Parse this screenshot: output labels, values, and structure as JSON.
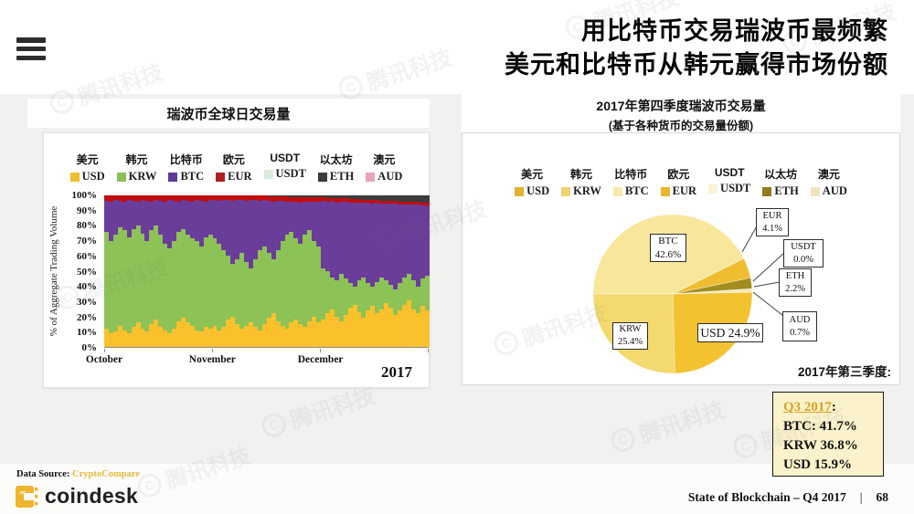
{
  "watermark": {
    "text": "腾讯科技"
  },
  "header": {
    "title_line1": "用比特币交易瑞波币最频繁",
    "title_line2": "美元和比特币从韩元赢得市场份额"
  },
  "left_chart": {
    "title": "瑞波币全球日交易量",
    "ylabel": "% of Aggregate Trading Volume",
    "year_label": "2017",
    "legend": [
      {
        "zh": "美元",
        "code": "USD",
        "color": "#EFBE2C"
      },
      {
        "zh": "韩元",
        "code": "KRW",
        "color": "#8CBE59"
      },
      {
        "zh": "比特币",
        "code": "BTC",
        "color": "#5D3A98"
      },
      {
        "zh": "欧元",
        "code": "EUR",
        "color": "#AF1E23"
      },
      {
        "zh": "USDT",
        "code": "USDT",
        "color": "#D9EBDD"
      },
      {
        "zh": "以太坊",
        "code": "ETH",
        "color": "#3B3B3B"
      },
      {
        "zh": "澳元",
        "code": "AUD",
        "color": "#E9A6B6"
      }
    ]
  },
  "right_chart": {
    "title_line1": "2017年第四季度瑞波币交易量",
    "title_line2": "(基于各种货币的交易量份额)",
    "q3_note": "2017年第三季度:",
    "legend": [
      {
        "zh": "美元",
        "code": "USD",
        "color": "#E2B233"
      },
      {
        "zh": "韩元",
        "code": "KRW",
        "color": "#EFD271"
      },
      {
        "zh": "比特币",
        "code": "BTC",
        "color": "#F7EAA9"
      },
      {
        "zh": "欧元",
        "code": "EUR",
        "color": "#E8B72F"
      },
      {
        "zh": "USDT",
        "code": "USDT",
        "color": "#FAF3D8"
      },
      {
        "zh": "以太坊",
        "code": "ETH",
        "color": "#917C1D"
      },
      {
        "zh": "澳元",
        "code": "AUD",
        "color": "#EDE3C1"
      }
    ]
  },
  "q3_box": {
    "link_label": "Q3 2017",
    "colon": ":",
    "lines": [
      "BTC: 41.7%",
      "KRW 36.8%",
      "USD 15.9%"
    ]
  },
  "footer": {
    "source_label": "Data Source:",
    "source_value": "CryptoCompare",
    "brand": "coindesk",
    "right_text": "State of Blockchain – Q4 2017",
    "separator": "|",
    "page": "68"
  },
  "chart_data": [
    {
      "type": "bar",
      "stacked": true,
      "percent_normalized": true,
      "title": "瑞波币全球日交易量",
      "ylabel": "% of Aggregate Trading Volume",
      "ylim": [
        0,
        100
      ],
      "yticks": [
        "100%",
        "90%",
        "80%",
        "70%",
        "60%",
        "50%",
        "40%",
        "30%",
        "20%",
        "10%",
        "0%"
      ],
      "x_months": [
        "October",
        "November",
        "December"
      ],
      "year": "2017",
      "days_per_month": 24,
      "series": [
        {
          "name": "USD",
          "color": "#FBC12D",
          "values": [
            12,
            9,
            10,
            14,
            11,
            9,
            13,
            16,
            12,
            10,
            15,
            18,
            13,
            11,
            9,
            12,
            17,
            19,
            16,
            14,
            11,
            10,
            13,
            12,
            14,
            11,
            13,
            18,
            20,
            15,
            12,
            14,
            16,
            13,
            11,
            15,
            19,
            22,
            17,
            14,
            12,
            16,
            18,
            15,
            13,
            17,
            20,
            16,
            18,
            22,
            25,
            20,
            17,
            21,
            26,
            28,
            23,
            19,
            24,
            27,
            22,
            25,
            29,
            26,
            21,
            24,
            28,
            31,
            25,
            22,
            27,
            24
          ]
        },
        {
          "name": "KRW",
          "color": "#8DC257",
          "values": [
            64,
            61,
            64,
            65,
            66,
            63,
            65,
            64,
            63,
            60,
            62,
            62,
            61,
            57,
            56,
            58,
            59,
            59,
            58,
            58,
            59,
            56,
            59,
            62,
            58,
            57,
            51,
            42,
            35,
            43,
            50,
            42,
            36,
            45,
            53,
            51,
            43,
            36,
            47,
            56,
            62,
            60,
            54,
            53,
            61,
            60,
            50,
            50,
            34,
            28,
            21,
            24,
            31,
            24,
            16,
            12,
            21,
            27,
            18,
            13,
            21,
            21,
            15,
            15,
            17,
            18,
            18,
            17,
            19,
            18,
            18,
            23
          ]
        },
        {
          "name": "BTC",
          "color": "#6A3D9A",
          "values": [
            20.5,
            26,
            23,
            17.5,
            19,
            25,
            18.5,
            16,
            22,
            26.5,
            19,
            17,
            22.5,
            28,
            32,
            26.5,
            20,
            19,
            22.5,
            24,
            27,
            30.5,
            24,
            23,
            25,
            28.5,
            33,
            37,
            41.5,
            39,
            35,
            40.5,
            45,
            39,
            32.5,
            31,
            34.5,
            38,
            32.5,
            26.5,
            22,
            20,
            24,
            27.5,
            22,
            19,
            26,
            30,
            44.5,
            46,
            50.5,
            51.5,
            48,
            50.5,
            53.5,
            55.5,
            51,
            49,
            53,
            54.5,
            52,
            48.5,
            50.5,
            53.5,
            56.5,
            52,
            48,
            46,
            50,
            54,
            48.5,
            46.5
          ]
        },
        {
          "name": "EUR",
          "color": "#C00E0E",
          "values": [
            3.5,
            4,
            3,
            3.5,
            4,
            3,
            3.5,
            4,
            3,
            3.5,
            4,
            3,
            3.5,
            4,
            3,
            3.5,
            4,
            3,
            3.5,
            4,
            3,
            3.5,
            4,
            3,
            3,
            3.5,
            3,
            3,
            3.5,
            3,
            3,
            3.5,
            3,
            3,
            3.5,
            3,
            3,
            3.5,
            3,
            3,
            3.5,
            3,
            3,
            3.5,
            3,
            3,
            3,
            3,
            2.5,
            2.5,
            2,
            2.5,
            2,
            2.5,
            2,
            2,
            2.5,
            2,
            2,
            2.5,
            2,
            2,
            2,
            2,
            2,
            2,
            2,
            2,
            2,
            2,
            2,
            2
          ]
        },
        {
          "name": "ETH",
          "color": "#3C3C3C",
          "values": [
            0,
            0,
            0,
            0,
            0,
            0,
            0,
            0,
            0,
            0,
            0,
            0,
            0,
            0,
            0,
            0,
            0,
            0,
            0,
            0,
            0,
            0,
            0,
            0,
            0,
            0,
            0,
            0,
            0,
            0,
            0,
            0,
            0,
            0,
            0,
            0,
            0.5,
            0.5,
            0.5,
            0.5,
            0.5,
            1,
            1,
            1,
            1,
            1,
            1,
            1,
            1,
            1.5,
            1.5,
            2,
            2,
            2,
            2.5,
            2.5,
            2.5,
            3,
            3,
            3,
            3,
            3.5,
            3.5,
            3.5,
            3.5,
            4,
            4,
            4,
            4,
            4,
            4.5,
            4.5
          ]
        }
      ],
      "series_not_visible": [
        {
          "name": "USDT",
          "approx_pct": 0
        },
        {
          "name": "AUD",
          "approx_pct": 0
        }
      ]
    },
    {
      "type": "pie",
      "title": "2017年第四季度瑞波币交易量",
      "subtitle": "(基于各种货币的交易量份额)",
      "start_angle_from_top_deg": 270,
      "clockwise": true,
      "slices": [
        {
          "label": "BTC",
          "pct": 42.6,
          "color": "#F8E79B"
        },
        {
          "label": "EUR",
          "pct": 4.1,
          "color": "#EFBD30"
        },
        {
          "label": "USDT",
          "pct": 0.0,
          "color": "#FCF5DC"
        },
        {
          "label": "ETH",
          "pct": 2.2,
          "color": "#A28D1E"
        },
        {
          "label": "AUD",
          "pct": 0.7,
          "color": "#F6E9B4"
        },
        {
          "label": "USD",
          "pct": 24.9,
          "color": "#F3C230"
        },
        {
          "label": "KRW",
          "pct": 25.4,
          "color": "#F4D96E"
        }
      ],
      "callouts": [
        {
          "id": "btc",
          "line1": "BTC",
          "line2": "42.6%"
        },
        {
          "id": "krw",
          "line1": "KRW",
          "line2": "25.4%"
        },
        {
          "id": "usd",
          "line1": "USD 24.9%",
          "line2": ""
        },
        {
          "id": "eur",
          "line1": "EUR",
          "line2": "4.1%"
        },
        {
          "id": "usdt",
          "line1": "USDT",
          "line2": "0.0%"
        },
        {
          "id": "eth",
          "line1": "ETH",
          "line2": "2.2%"
        },
        {
          "id": "aud",
          "line1": "AUD",
          "line2": "0.7%"
        }
      ],
      "q3_reference": {
        "BTC": 41.7,
        "KRW": 36.8,
        "USD": 15.9
      }
    }
  ]
}
